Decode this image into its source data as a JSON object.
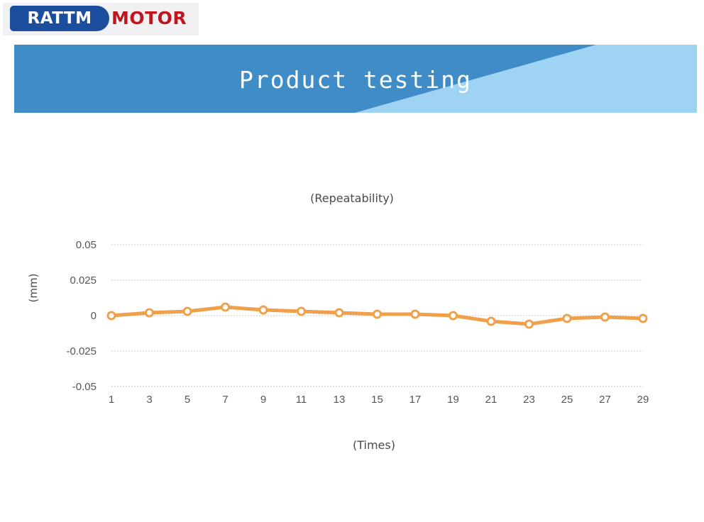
{
  "logo": {
    "left_word": "RATTM",
    "right_word": "MOTOR",
    "left_color": "#1b4f9e",
    "right_color": "#c0141e"
  },
  "banner": {
    "title": "Product testing",
    "dark_color": "#3f8cc6",
    "light_color": "#9ed3f4"
  },
  "chart_data": {
    "type": "line",
    "title": "(Repeatability)",
    "xlabel": "(Times)",
    "ylabel": "(mm)",
    "x": [
      1,
      3,
      5,
      7,
      9,
      11,
      13,
      15,
      17,
      19,
      21,
      23,
      25,
      27,
      29
    ],
    "values": [
      0,
      0.002,
      0.003,
      0.006,
      0.004,
      0.003,
      0.002,
      0.001,
      0.001,
      0,
      -0.004,
      -0.006,
      -0.002,
      -0.001,
      -0.002
    ],
    "ylim": [
      -0.05,
      0.05
    ],
    "yticks": [
      0.05,
      0.025,
      0,
      -0.025,
      -0.05
    ],
    "ytick_labels": [
      "0.05",
      "0.025",
      "0",
      "-0.025",
      "-0.05"
    ],
    "grid": true,
    "line_color": "#f0a04b",
    "marker_fill": "#ffffff"
  }
}
